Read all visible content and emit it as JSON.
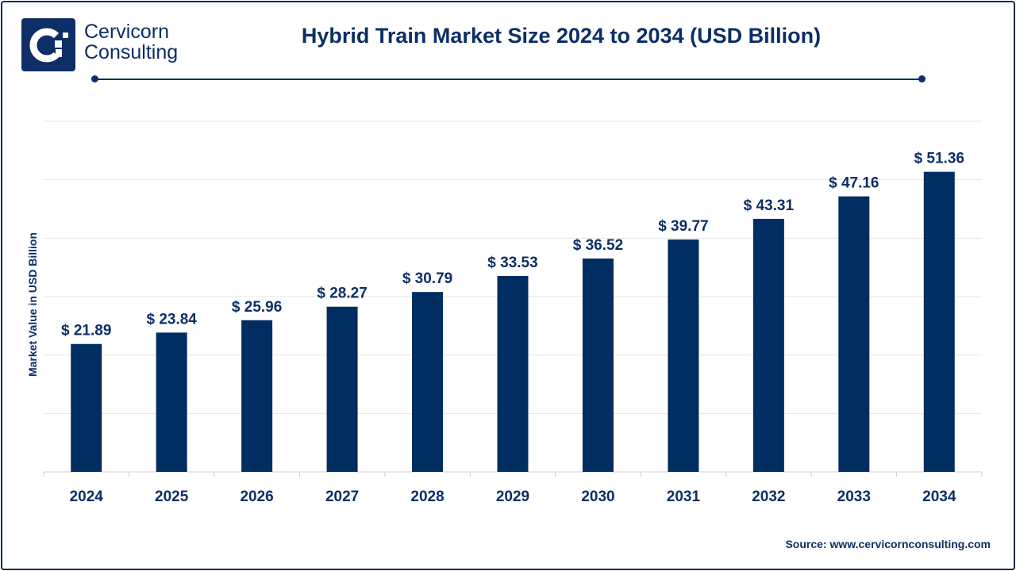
{
  "brand": {
    "name_line1": "Cervicorn",
    "name_line2": "Consulting",
    "color": "#0d2e66"
  },
  "source": "Source: www.cervicornconsulting.com",
  "chart_data": {
    "type": "bar",
    "title": "Hybrid Train Market Size 2024 to 2034 (USD Billion)",
    "xlabel": "",
    "ylabel": "Market Value in USD Billion",
    "categories": [
      "2024",
      "2025",
      "2026",
      "2027",
      "2028",
      "2029",
      "2030",
      "2031",
      "2032",
      "2033",
      "2034"
    ],
    "values": [
      21.89,
      23.84,
      25.96,
      28.27,
      30.79,
      33.53,
      36.52,
      39.77,
      43.31,
      47.16,
      51.36
    ],
    "data_labels": [
      "$ 21.89",
      "$ 23.84",
      "$ 25.96",
      "$ 28.27",
      "$ 30.79",
      "$ 33.53",
      "$ 36.52",
      "$ 39.77",
      "$ 43.31",
      "$ 47.16",
      "$ 51.36"
    ],
    "ylim": [
      0,
      60
    ],
    "grid": true,
    "bar_color": "#002d62"
  }
}
